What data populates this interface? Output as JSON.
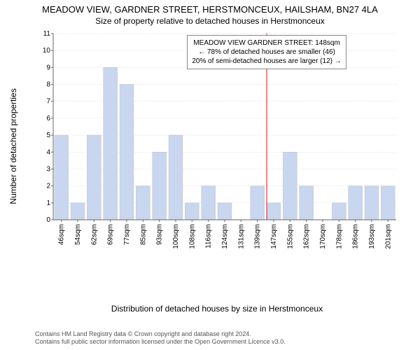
{
  "title": "MEADOW VIEW, GARDNER STREET, HERSTMONCEUX, HAILSHAM, BN27 4LA",
  "subtitle": "Size of property relative to detached houses in Herstmonceux",
  "ylabel": "Number of detached properties",
  "xlabel": "Distribution of detached houses by size in Herstmonceux",
  "footer_line1": "Contains HM Land Registry data © Crown copyright and database right 2024.",
  "footer_line2": "Contains full public sector information licensed under the Open Government Licence v3.0.",
  "chart": {
    "type": "bar",
    "categories": [
      "46sqm",
      "54sqm",
      "62sqm",
      "69sqm",
      "77sqm",
      "85sqm",
      "93sqm",
      "100sqm",
      "108sqm",
      "116sqm",
      "124sqm",
      "131sqm",
      "139sqm",
      "147sqm",
      "155sqm",
      "162sqm",
      "170sqm",
      "178sqm",
      "186sqm",
      "193sqm",
      "201sqm"
    ],
    "values": [
      5,
      1,
      5,
      9,
      8,
      2,
      4,
      5,
      1,
      2,
      1,
      0,
      2,
      1,
      4,
      2,
      0,
      1,
      2,
      2,
      2
    ],
    "bar_color": "#c8d6f0",
    "bar_border": "#c0c0c0",
    "grid_color": "#bbbbbb",
    "axis_color": "#666666",
    "ylim": [
      0,
      11
    ],
    "ytick_step": 1,
    "highlight_index": 13,
    "highlight_color": "#ff0000"
  },
  "callout": {
    "line1": "MEADOW VIEW GARDNER STREET: 148sqm",
    "line2": "← 78% of detached houses are smaller (46)",
    "line3": "20% of semi-detached houses are larger (12) →"
  }
}
